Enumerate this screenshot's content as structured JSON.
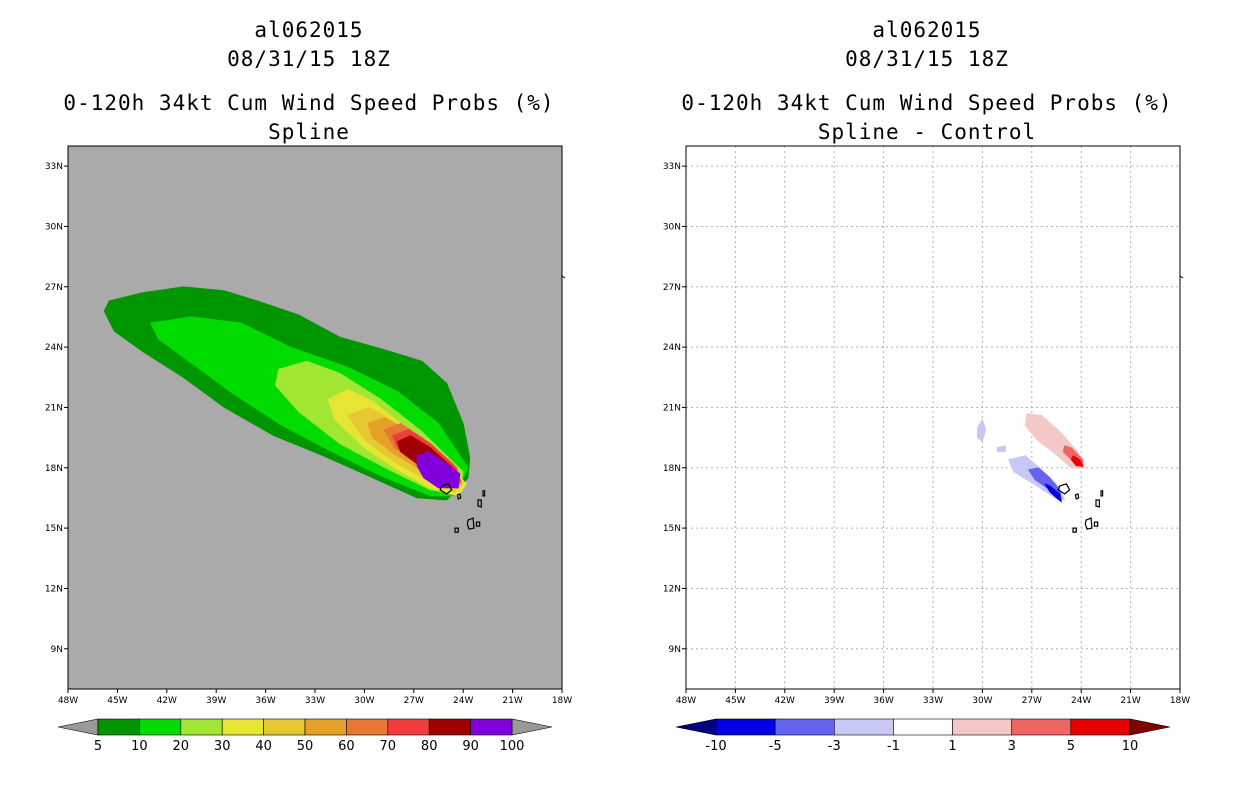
{
  "chart_data": [
    {
      "type": "filled_contour_map",
      "storm_id": "al062015",
      "datetime": "08/31/15 18Z",
      "title": "0-120h 34kt Cum Wind Speed Probs (%)",
      "subtitle": "Spline",
      "background_color": "#aaaaaa",
      "lon_range": [
        -48,
        -18
      ],
      "lat_range": [
        7,
        34
      ],
      "x_ticks": [
        "48W",
        "45W",
        "42W",
        "39W",
        "36W",
        "33W",
        "30W",
        "27W",
        "24W",
        "21W",
        "18W"
      ],
      "y_ticks": [
        "9N",
        "12N",
        "15N",
        "18N",
        "21N",
        "24N",
        "27N",
        "30N",
        "33N"
      ],
      "grid": false,
      "colorbar": {
        "labels": [
          "5",
          "10",
          "20",
          "30",
          "40",
          "50",
          "60",
          "70",
          "80",
          "90",
          "100"
        ],
        "colors": [
          "#009600",
          "#00dc00",
          "#a0e632",
          "#e6e632",
          "#e6c832",
          "#e6a028",
          "#e67832",
          "#f03c3c",
          "#a00000",
          "#8200dc"
        ],
        "extend_colors": [
          "#999999",
          "#999999"
        ]
      },
      "contours": [
        {
          "level": 5,
          "color": "#009600",
          "lonlat": [
            [
              -45.8,
              25.8
            ],
            [
              -45.5,
              26.3
            ],
            [
              -43.5,
              26.7
            ],
            [
              -41,
              27
            ],
            [
              -38.5,
              26.8
            ],
            [
              -36.5,
              26.3
            ],
            [
              -34,
              25.6
            ],
            [
              -31.5,
              24.5
            ],
            [
              -28.5,
              23.8
            ],
            [
              -26.5,
              23.3
            ],
            [
              -25,
              22.2
            ],
            [
              -24,
              20.2
            ],
            [
              -23.6,
              18.5
            ],
            [
              -23.7,
              17.5
            ],
            [
              -25,
              16.4
            ],
            [
              -26.8,
              16.5
            ],
            [
              -29.5,
              17.5
            ],
            [
              -32.5,
              18.6
            ],
            [
              -35.5,
              19.6
            ],
            [
              -38.5,
              21
            ],
            [
              -41,
              22.5
            ],
            [
              -43.5,
              23.8
            ],
            [
              -45.2,
              24.8
            ]
          ]
        },
        {
          "level": 10,
          "color": "#00dc00",
          "lonlat": [
            [
              -43,
              25.2
            ],
            [
              -40.5,
              25.5
            ],
            [
              -37.5,
              25.2
            ],
            [
              -34.5,
              24
            ],
            [
              -31,
              23
            ],
            [
              -28,
              21.8
            ],
            [
              -25.5,
              20.2
            ],
            [
              -23.7,
              18
            ],
            [
              -24.5,
              16.6
            ],
            [
              -26,
              16.6
            ],
            [
              -29,
              17.6
            ],
            [
              -32,
              18.8
            ],
            [
              -35,
              20.1
            ],
            [
              -38,
              21.7
            ],
            [
              -40.5,
              23.2
            ],
            [
              -42.5,
              24.4
            ]
          ]
        },
        {
          "level": 20,
          "color": "#a0e632",
          "lonlat": [
            [
              -35.2,
              22.9
            ],
            [
              -33.5,
              23.3
            ],
            [
              -31.5,
              22.7
            ],
            [
              -29,
              21.4
            ],
            [
              -26.5,
              19.8
            ],
            [
              -24,
              17.8
            ],
            [
              -24.2,
              16.8
            ],
            [
              -26,
              16.9
            ],
            [
              -28.5,
              17.9
            ],
            [
              -31.5,
              19.2
            ],
            [
              -34,
              20.8
            ],
            [
              -35.4,
              22.1
            ]
          ]
        },
        {
          "level": 30,
          "color": "#e6e632",
          "lonlat": [
            [
              -32.2,
              21.4
            ],
            [
              -31,
              21.9
            ],
            [
              -29.5,
              21.3
            ],
            [
              -27.5,
              20
            ],
            [
              -25,
              18.2
            ],
            [
              -23.8,
              17.2
            ],
            [
              -24.3,
              16.6
            ],
            [
              -25.8,
              16.9
            ],
            [
              -28,
              17.9
            ],
            [
              -30,
              19
            ],
            [
              -31.8,
              20.4
            ]
          ]
        },
        {
          "level": 40,
          "color": "#e6c832",
          "lonlat": [
            [
              -31,
              20.6
            ],
            [
              -29.7,
              21
            ],
            [
              -28,
              20.2
            ],
            [
              -25.5,
              18.5
            ],
            [
              -24,
              17.2
            ],
            [
              -24.5,
              16.8
            ],
            [
              -26,
              17.3
            ],
            [
              -28.2,
              18.3
            ],
            [
              -30,
              19.4
            ]
          ]
        },
        {
          "level": 50,
          "color": "#e6a028",
          "lonlat": [
            [
              -29.8,
              20.2
            ],
            [
              -28.8,
              20.5
            ],
            [
              -27.2,
              19.8
            ],
            [
              -25,
              18.3
            ],
            [
              -24.1,
              17.2
            ],
            [
              -24.7,
              17
            ],
            [
              -26,
              17.6
            ],
            [
              -28.2,
              18.7
            ],
            [
              -29.5,
              19.5
            ]
          ]
        },
        {
          "level": 60,
          "color": "#e67832",
          "lonlat": [
            [
              -28.8,
              19.9
            ],
            [
              -27.8,
              20.2
            ],
            [
              -26.5,
              19.5
            ],
            [
              -24.6,
              18.2
            ],
            [
              -24.1,
              17.3
            ],
            [
              -24.8,
              17.1
            ],
            [
              -26.3,
              17.9
            ],
            [
              -28.2,
              19
            ]
          ]
        },
        {
          "level": 70,
          "color": "#f03c3c",
          "lonlat": [
            [
              -28.3,
              19.6
            ],
            [
              -27.3,
              19.9
            ],
            [
              -26,
              19.2
            ],
            [
              -24.4,
              18
            ],
            [
              -24.2,
              17.3
            ],
            [
              -25,
              17.3
            ],
            [
              -26.6,
              18.1
            ],
            [
              -28,
              19
            ]
          ]
        },
        {
          "level": 80,
          "color": "#a00000",
          "lonlat": [
            [
              -28,
              19.3
            ],
            [
              -27.2,
              19.6
            ],
            [
              -26,
              19
            ],
            [
              -24.5,
              17.9
            ],
            [
              -24.4,
              17.3
            ],
            [
              -25.3,
              17.5
            ],
            [
              -26.8,
              18.2
            ],
            [
              -27.8,
              18.8
            ]
          ]
        },
        {
          "level": 90,
          "color": "#8200dc",
          "lonlat": [
            [
              -26.8,
              18.6
            ],
            [
              -26.1,
              18.8
            ],
            [
              -25,
              18.2
            ],
            [
              -24.2,
              17.7
            ],
            [
              -24.3,
              17
            ],
            [
              -25.5,
              17
            ],
            [
              -26.4,
              17.5
            ],
            [
              -26.8,
              18.1
            ]
          ]
        }
      ]
    },
    {
      "type": "filled_contour_map",
      "storm_id": "al062015",
      "datetime": "08/31/15 18Z",
      "title": "0-120h 34kt Cum Wind Speed Probs (%)",
      "subtitle": "Spline - Control",
      "background_color": "#ffffff",
      "lon_range": [
        -48,
        -18
      ],
      "lat_range": [
        7,
        34
      ],
      "x_ticks": [
        "48W",
        "45W",
        "42W",
        "39W",
        "36W",
        "33W",
        "30W",
        "27W",
        "24W",
        "21W",
        "18W"
      ],
      "y_ticks": [
        "9N",
        "12N",
        "15N",
        "18N",
        "21N",
        "24N",
        "27N",
        "30N",
        "33N"
      ],
      "grid": true,
      "colorbar": {
        "labels": [
          "-10",
          "-5",
          "-3",
          "-1",
          "1",
          "3",
          "5",
          "10"
        ],
        "colors": [
          "#0000e6",
          "#6464f0",
          "#c8c8f5",
          "#ffffff",
          "#f5c8c8",
          "#f06464",
          "#e60000"
        ],
        "extend_colors": [
          "#000080",
          "#800000"
        ]
      },
      "contours": [
        {
          "level": -1,
          "color": "#c8c8f5",
          "lonlat": [
            [
              -28.4,
              18.4
            ],
            [
              -27.4,
              18.6
            ],
            [
              -26.4,
              17.9
            ],
            [
              -25.4,
              17.1
            ],
            [
              -25,
              16.4
            ],
            [
              -25.6,
              16.5
            ],
            [
              -26.7,
              17.1
            ],
            [
              -28.1,
              17.8
            ]
          ]
        },
        {
          "level": -1,
          "color": "#c8c8f5",
          "lonlat": [
            [
              -30.3,
              20
            ],
            [
              -30,
              20.4
            ],
            [
              -29.8,
              19.9
            ],
            [
              -30,
              19.3
            ],
            [
              -30.3,
              19.5
            ]
          ]
        },
        {
          "level": -1,
          "color": "#c8c8f5",
          "lonlat": [
            [
              -29.1,
              19
            ],
            [
              -28.6,
              19.1
            ],
            [
              -28.6,
              18.8
            ],
            [
              -29.1,
              18.8
            ]
          ]
        },
        {
          "level": -3,
          "color": "#6464f0",
          "lonlat": [
            [
              -27.2,
              17.9
            ],
            [
              -26.6,
              18
            ],
            [
              -25.9,
              17.5
            ],
            [
              -25.3,
              16.9
            ],
            [
              -25.2,
              16.4
            ],
            [
              -25.9,
              16.9
            ],
            [
              -26.8,
              17.4
            ]
          ]
        },
        {
          "level": -5,
          "color": "#0000e6",
          "lonlat": [
            [
              -26.2,
              17.2
            ],
            [
              -25.9,
              17.1
            ],
            [
              -25.3,
              16.7
            ],
            [
              -25.2,
              16.3
            ],
            [
              -25.5,
              16.5
            ],
            [
              -25.9,
              16.8
            ]
          ]
        },
        {
          "level": 1,
          "color": "#f5c8c8",
          "lonlat": [
            [
              -27.3,
              20.7
            ],
            [
              -26.4,
              20.6
            ],
            [
              -25.3,
              19.8
            ],
            [
              -24.2,
              18.8
            ],
            [
              -23.8,
              18
            ],
            [
              -24.6,
              18
            ],
            [
              -25.6,
              18.7
            ],
            [
              -26.7,
              19.4
            ],
            [
              -27.4,
              20.1
            ]
          ]
        },
        {
          "level": 3,
          "color": "#f06464",
          "lonlat": [
            [
              -25,
              19.1
            ],
            [
              -24.6,
              19
            ],
            [
              -23.9,
              18.4
            ],
            [
              -23.9,
              18
            ],
            [
              -24.6,
              18.4
            ],
            [
              -25.1,
              18.8
            ]
          ]
        },
        {
          "level": 5,
          "color": "#e60000",
          "lonlat": [
            [
              -24.5,
              18.6
            ],
            [
              -24.1,
              18.4
            ],
            [
              -23.9,
              18.1
            ],
            [
              -24.3,
              18.1
            ],
            [
              -24.6,
              18.4
            ]
          ]
        }
      ]
    }
  ]
}
